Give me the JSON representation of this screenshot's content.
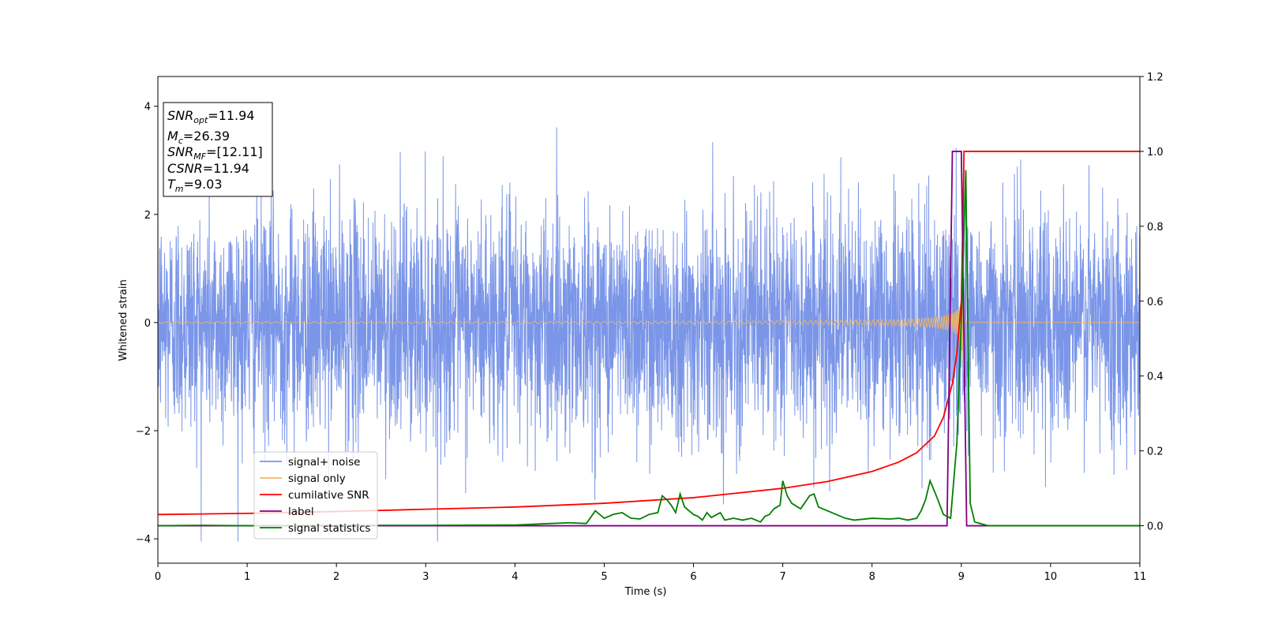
{
  "chart_data": {
    "type": "line",
    "xlabel": "Time (s)",
    "ylabel": "Whitened strain",
    "xlim": [
      0,
      11
    ],
    "ylim": [
      -4.45,
      4.55
    ],
    "y2lim": [
      -0.1,
      1.2
    ],
    "x_ticks": [
      "0",
      "1",
      "2",
      "3",
      "4",
      "5",
      "6",
      "7",
      "8",
      "9",
      "10",
      "11"
    ],
    "y_ticks": [
      "−4",
      "−2",
      "0",
      "2",
      "4"
    ],
    "y2_ticks": [
      "0.0",
      "0.2",
      "0.4",
      "0.6",
      "0.8",
      "1.0",
      "1.2"
    ],
    "grid": false,
    "legend_position": "lower-left",
    "annotation": {
      "lines": [
        {
          "main": "SNR",
          "sub": "opt",
          "rest": "=11.94"
        },
        {
          "main": "M",
          "sub": "c",
          "rest": "=26.39"
        },
        {
          "main": "SNR",
          "sub": "MF",
          "rest": "=[12.11]"
        },
        {
          "main": "CSNR",
          "sub": "",
          "rest": "=11.94"
        },
        {
          "main": "T",
          "sub": "m",
          "rest": "=9.03"
        }
      ]
    },
    "series": [
      {
        "name": "signal+ noise",
        "axis": "left",
        "color": "#7b96e8",
        "style": "dense noise, amplitude envelope ±4",
        "noise_sigma": 1.0,
        "ylim_clip": [
          -4.05,
          4.0
        ]
      },
      {
        "name": "signal only",
        "axis": "left",
        "color": "#f5b75c",
        "style": "chirp",
        "merger_time": 9.03,
        "peak_amplitude": 1.5
      },
      {
        "name": "cumilative SNR",
        "axis": "right",
        "color": "#ff0000",
        "points": [
          [
            0,
            0.03
          ],
          [
            1,
            0.033
          ],
          [
            2,
            0.038
          ],
          [
            3,
            0.044
          ],
          [
            4,
            0.05
          ],
          [
            5,
            0.06
          ],
          [
            6,
            0.075
          ],
          [
            7,
            0.1
          ],
          [
            7.5,
            0.118
          ],
          [
            8,
            0.145
          ],
          [
            8.3,
            0.17
          ],
          [
            8.5,
            0.195
          ],
          [
            8.7,
            0.24
          ],
          [
            8.8,
            0.29
          ],
          [
            8.9,
            0.38
          ],
          [
            8.95,
            0.46
          ],
          [
            9.0,
            0.6
          ],
          [
            9.02,
            0.85
          ],
          [
            9.03,
            1.0
          ],
          [
            11,
            1.0
          ]
        ]
      },
      {
        "name": "label",
        "axis": "right",
        "color": "#800080",
        "points": [
          [
            0,
            0
          ],
          [
            8.84,
            0
          ],
          [
            8.9,
            1.0
          ],
          [
            9.0,
            1.0
          ],
          [
            9.06,
            0
          ],
          [
            11,
            0
          ]
        ]
      },
      {
        "name": "signal statistics",
        "axis": "right",
        "color": "#008000",
        "points": [
          [
            0,
            0
          ],
          [
            0.5,
            0.001
          ],
          [
            1,
            0
          ],
          [
            2,
            0.001
          ],
          [
            3,
            0.001
          ],
          [
            4,
            0.002
          ],
          [
            4.3,
            0.005
          ],
          [
            4.6,
            0.008
          ],
          [
            4.8,
            0.006
          ],
          [
            4.9,
            0.04
          ],
          [
            5.0,
            0.02
          ],
          [
            5.1,
            0.03
          ],
          [
            5.2,
            0.035
          ],
          [
            5.3,
            0.02
          ],
          [
            5.4,
            0.018
          ],
          [
            5.5,
            0.03
          ],
          [
            5.6,
            0.035
          ],
          [
            5.65,
            0.08
          ],
          [
            5.7,
            0.07
          ],
          [
            5.75,
            0.055
          ],
          [
            5.8,
            0.035
          ],
          [
            5.85,
            0.085
          ],
          [
            5.9,
            0.05
          ],
          [
            6.0,
            0.03
          ],
          [
            6.05,
            0.025
          ],
          [
            6.1,
            0.015
          ],
          [
            6.15,
            0.035
          ],
          [
            6.2,
            0.022
          ],
          [
            6.3,
            0.035
          ],
          [
            6.35,
            0.015
          ],
          [
            6.45,
            0.02
          ],
          [
            6.55,
            0.015
          ],
          [
            6.65,
            0.02
          ],
          [
            6.75,
            0.01
          ],
          [
            6.8,
            0.025
          ],
          [
            6.85,
            0.03
          ],
          [
            6.9,
            0.045
          ],
          [
            6.97,
            0.055
          ],
          [
            7.0,
            0.12
          ],
          [
            7.05,
            0.08
          ],
          [
            7.1,
            0.06
          ],
          [
            7.2,
            0.045
          ],
          [
            7.3,
            0.08
          ],
          [
            7.35,
            0.085
          ],
          [
            7.4,
            0.05
          ],
          [
            7.5,
            0.04
          ],
          [
            7.6,
            0.03
          ],
          [
            7.7,
            0.02
          ],
          [
            7.8,
            0.015
          ],
          [
            8.0,
            0.02
          ],
          [
            8.2,
            0.018
          ],
          [
            8.3,
            0.02
          ],
          [
            8.4,
            0.015
          ],
          [
            8.5,
            0.02
          ],
          [
            8.55,
            0.04
          ],
          [
            8.6,
            0.07
          ],
          [
            8.65,
            0.12
          ],
          [
            8.72,
            0.08
          ],
          [
            8.8,
            0.03
          ],
          [
            8.88,
            0.02
          ],
          [
            8.95,
            0.22
          ],
          [
            9.0,
            0.55
          ],
          [
            9.05,
            0.95
          ],
          [
            9.08,
            0.4
          ],
          [
            9.1,
            0.06
          ],
          [
            9.15,
            0.01
          ],
          [
            9.3,
            0
          ],
          [
            11,
            0
          ]
        ]
      }
    ]
  }
}
